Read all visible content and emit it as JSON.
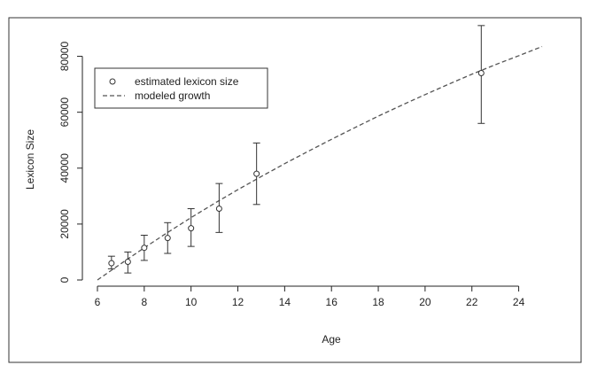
{
  "chart_data": {
    "type": "scatter",
    "title": "",
    "xlabel": "Age",
    "ylabel": "Lexicon Size",
    "xlim": [
      6,
      25
    ],
    "ylim": [
      0,
      90000
    ],
    "x_ticks": [
      6,
      8,
      10,
      12,
      14,
      16,
      18,
      20,
      22,
      24
    ],
    "y_ticks": [
      0,
      20000,
      40000,
      60000,
      80000
    ],
    "grid": false,
    "legend": {
      "placement": "top-left",
      "entries": [
        {
          "label": "estimated lexicon size",
          "marker": "open-circle"
        },
        {
          "label": "modeled growth",
          "marker": "dashed-line"
        }
      ]
    },
    "points": [
      {
        "x": 6.6,
        "y": 6000,
        "err_low": 4000,
        "err_high": 8500
      },
      {
        "x": 7.3,
        "y": 6500,
        "err_low": 2500,
        "err_high": 10000
      },
      {
        "x": 8.0,
        "y": 11500,
        "err_low": 7000,
        "err_high": 16000
      },
      {
        "x": 9.0,
        "y": 15000,
        "err_low": 9500,
        "err_high": 20500
      },
      {
        "x": 10.0,
        "y": 18500,
        "err_low": 12000,
        "err_high": 25500
      },
      {
        "x": 11.2,
        "y": 25500,
        "err_low": 17000,
        "err_high": 34500
      },
      {
        "x": 12.8,
        "y": 38000,
        "err_low": 27000,
        "err_high": 49000
      },
      {
        "x": 22.4,
        "y": 74000,
        "err_low": 56000,
        "err_high": 91000
      }
    ],
    "model_line": {
      "style": "dashed",
      "x": [
        6.0,
        7,
        8,
        9,
        10,
        11,
        12,
        13,
        14,
        15,
        16,
        17,
        18,
        19,
        20,
        21,
        22,
        23,
        24,
        25
      ],
      "y": [
        0,
        5800,
        11500,
        17000,
        22300,
        27400,
        32300,
        37000,
        41600,
        46000,
        50300,
        54500,
        58600,
        62500,
        66300,
        70000,
        73600,
        77000,
        80200,
        83500
      ]
    },
    "colors": {
      "axis": "#222222",
      "marker": "#333333",
      "line": "#555555",
      "frame": "#333333"
    }
  }
}
